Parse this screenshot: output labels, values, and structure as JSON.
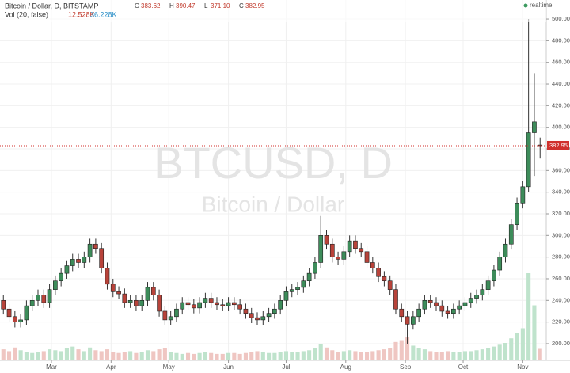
{
  "header": {
    "symbol": "Bitcoin / Dollar, D, BITSTAMP",
    "ohlc": [
      {
        "label": "O",
        "value": "383.62"
      },
      {
        "label": "H",
        "value": "390.47"
      },
      {
        "label": "L",
        "value": "371.10"
      },
      {
        "label": "C",
        "value": "382.95"
      }
    ],
    "volume_title": "Vol (20, false)",
    "volume_value": "12.528K",
    "volume_ma": "36.228K",
    "status": "realtime"
  },
  "watermark": {
    "symbol": "BTCUSD, D",
    "description": "Bitcoin / Dollar"
  },
  "chart_data": {
    "type": "candlestick",
    "up_color": "#3d8c5a",
    "down_color": "#b8433a",
    "volume_up_color": "#bfe3cc",
    "volume_down_color": "#efc6c2",
    "last_price": {
      "value": 382.95,
      "label": "382.95"
    },
    "last_price_color": "#d0312d",
    "xlim": [
      1.25,
      285.2
    ],
    "ylim": [
      184.6,
      517.6
    ],
    "xticks": [
      {
        "value": 28,
        "label": "Mar"
      },
      {
        "value": 59,
        "label": "Apr"
      },
      {
        "value": 89,
        "label": "May"
      },
      {
        "value": 120,
        "label": "Jun"
      },
      {
        "value": 150,
        "label": "Jul"
      },
      {
        "value": 181,
        "label": "Aug"
      },
      {
        "value": 212,
        "label": "Sep"
      },
      {
        "value": 242,
        "label": "Oct"
      },
      {
        "value": 273,
        "label": "Nov"
      }
    ],
    "yticks": [
      {
        "value": 200,
        "label": "200.00"
      },
      {
        "value": 220,
        "label": "220.00"
      },
      {
        "value": 240,
        "label": "240.00"
      },
      {
        "value": 260,
        "label": "260.00"
      },
      {
        "value": 280,
        "label": "280.00"
      },
      {
        "value": 300,
        "label": "300.00"
      },
      {
        "value": 320,
        "label": "320.00"
      },
      {
        "value": 340,
        "label": "340.00"
      },
      {
        "value": 360,
        "label": "360.00"
      },
      {
        "value": 380,
        "label": "380.00"
      },
      {
        "value": 400,
        "label": "400.00"
      },
      {
        "value": 420,
        "label": "420.00"
      },
      {
        "value": 440,
        "label": "440.00"
      },
      {
        "value": 460,
        "label": "460.00"
      },
      {
        "value": 480,
        "label": "480.00"
      },
      {
        "value": 500,
        "label": "500.00"
      }
    ],
    "x": [
      3,
      6,
      9,
      12,
      15,
      18,
      21,
      24,
      27,
      30,
      33,
      36,
      39,
      42,
      45,
      48,
      51,
      54,
      57,
      60,
      63,
      66,
      69,
      72,
      75,
      78,
      81,
      84,
      87,
      90,
      93,
      96,
      99,
      102,
      105,
      108,
      111,
      114,
      117,
      120,
      123,
      126,
      129,
      132,
      135,
      138,
      141,
      144,
      147,
      150,
      153,
      156,
      159,
      162,
      165,
      168,
      171,
      174,
      177,
      180,
      183,
      186,
      189,
      192,
      195,
      198,
      201,
      204,
      207,
      210,
      213,
      216,
      219,
      222,
      225,
      228,
      231,
      234,
      237,
      240,
      243,
      246,
      249,
      252,
      255,
      258,
      261,
      264,
      267,
      270,
      273,
      276,
      279,
      282
    ],
    "open": [
      240,
      232,
      225,
      220,
      222,
      235,
      240,
      245,
      238,
      250,
      258,
      265,
      272,
      278,
      275,
      280,
      292,
      288,
      270,
      255,
      248,
      246,
      238,
      240,
      235,
      240,
      252,
      245,
      230,
      222,
      225,
      232,
      238,
      236,
      233,
      238,
      242,
      238,
      236,
      235,
      238,
      236,
      232,
      228,
      224,
      222,
      225,
      228,
      232,
      240,
      248,
      250,
      252,
      258,
      265,
      275,
      300,
      292,
      280,
      278,
      285,
      295,
      288,
      285,
      275,
      270,
      262,
      258,
      250,
      232,
      225,
      218,
      225,
      232,
      240,
      238,
      235,
      230,
      228,
      232,
      235,
      238,
      242,
      245,
      250,
      258,
      268,
      280,
      292,
      310,
      330,
      345,
      395,
      383.62
    ],
    "high": [
      245,
      237,
      230,
      227,
      240,
      245,
      250,
      250,
      255,
      263,
      270,
      277,
      283,
      283,
      285,
      297,
      297,
      293,
      275,
      260,
      253,
      251,
      245,
      245,
      245,
      257,
      257,
      250,
      235,
      230,
      237,
      243,
      243,
      241,
      243,
      247,
      247,
      243,
      241,
      243,
      243,
      241,
      237,
      233,
      229,
      230,
      233,
      237,
      245,
      253,
      255,
      257,
      263,
      270,
      280,
      318,
      305,
      297,
      285,
      290,
      300,
      300,
      293,
      290,
      280,
      275,
      267,
      263,
      255,
      237,
      230,
      230,
      237,
      245,
      245,
      243,
      240,
      235,
      237,
      240,
      243,
      247,
      250,
      255,
      263,
      273,
      285,
      297,
      315,
      335,
      350,
      500,
      450,
      390.47
    ],
    "low": [
      227,
      220,
      215,
      215,
      217,
      230,
      235,
      233,
      233,
      245,
      253,
      260,
      267,
      270,
      270,
      275,
      283,
      265,
      250,
      243,
      241,
      233,
      233,
      230,
      230,
      235,
      240,
      225,
      217,
      217,
      220,
      227,
      231,
      228,
      228,
      233,
      233,
      231,
      230,
      230,
      231,
      227,
      223,
      219,
      217,
      217,
      220,
      223,
      227,
      235,
      243,
      245,
      247,
      253,
      260,
      270,
      287,
      275,
      273,
      273,
      280,
      283,
      280,
      270,
      265,
      257,
      253,
      245,
      227,
      220,
      200,
      213,
      220,
      227,
      233,
      230,
      225,
      223,
      223,
      227,
      230,
      233,
      237,
      240,
      245,
      253,
      263,
      275,
      287,
      305,
      325,
      340,
      355,
      371.1
    ],
    "close": [
      232,
      225,
      220,
      222,
      235,
      240,
      245,
      238,
      250,
      258,
      265,
      272,
      278,
      275,
      280,
      292,
      288,
      270,
      255,
      248,
      246,
      238,
      240,
      235,
      240,
      252,
      245,
      230,
      222,
      225,
      232,
      238,
      236,
      233,
      238,
      242,
      238,
      236,
      235,
      238,
      236,
      232,
      228,
      224,
      222,
      225,
      228,
      232,
      240,
      248,
      250,
      252,
      258,
      265,
      275,
      300,
      292,
      280,
      278,
      285,
      295,
      288,
      285,
      275,
      270,
      262,
      258,
      250,
      232,
      225,
      218,
      225,
      232,
      240,
      238,
      235,
      230,
      228,
      232,
      235,
      238,
      242,
      245,
      250,
      258,
      268,
      280,
      292,
      310,
      330,
      345,
      395,
      405,
      382.95
    ],
    "volume": [
      12,
      10,
      14,
      11,
      9,
      8,
      9,
      10,
      12,
      11,
      10,
      13,
      15,
      12,
      10,
      14,
      11,
      10,
      12,
      9,
      8,
      9,
      10,
      8,
      9,
      11,
      10,
      12,
      13,
      9,
      8,
      7,
      8,
      7,
      8,
      9,
      8,
      7,
      7,
      8,
      8,
      7,
      8,
      9,
      10,
      9,
      8,
      8,
      9,
      10,
      9,
      9,
      10,
      11,
      13,
      18,
      14,
      11,
      9,
      10,
      11,
      10,
      9,
      9,
      10,
      11,
      12,
      13,
      20,
      22,
      25,
      16,
      13,
      12,
      10,
      9,
      9,
      10,
      9,
      9,
      10,
      10,
      11,
      12,
      13,
      15,
      17,
      19,
      24,
      30,
      35,
      95,
      60,
      12.528
    ]
  }
}
